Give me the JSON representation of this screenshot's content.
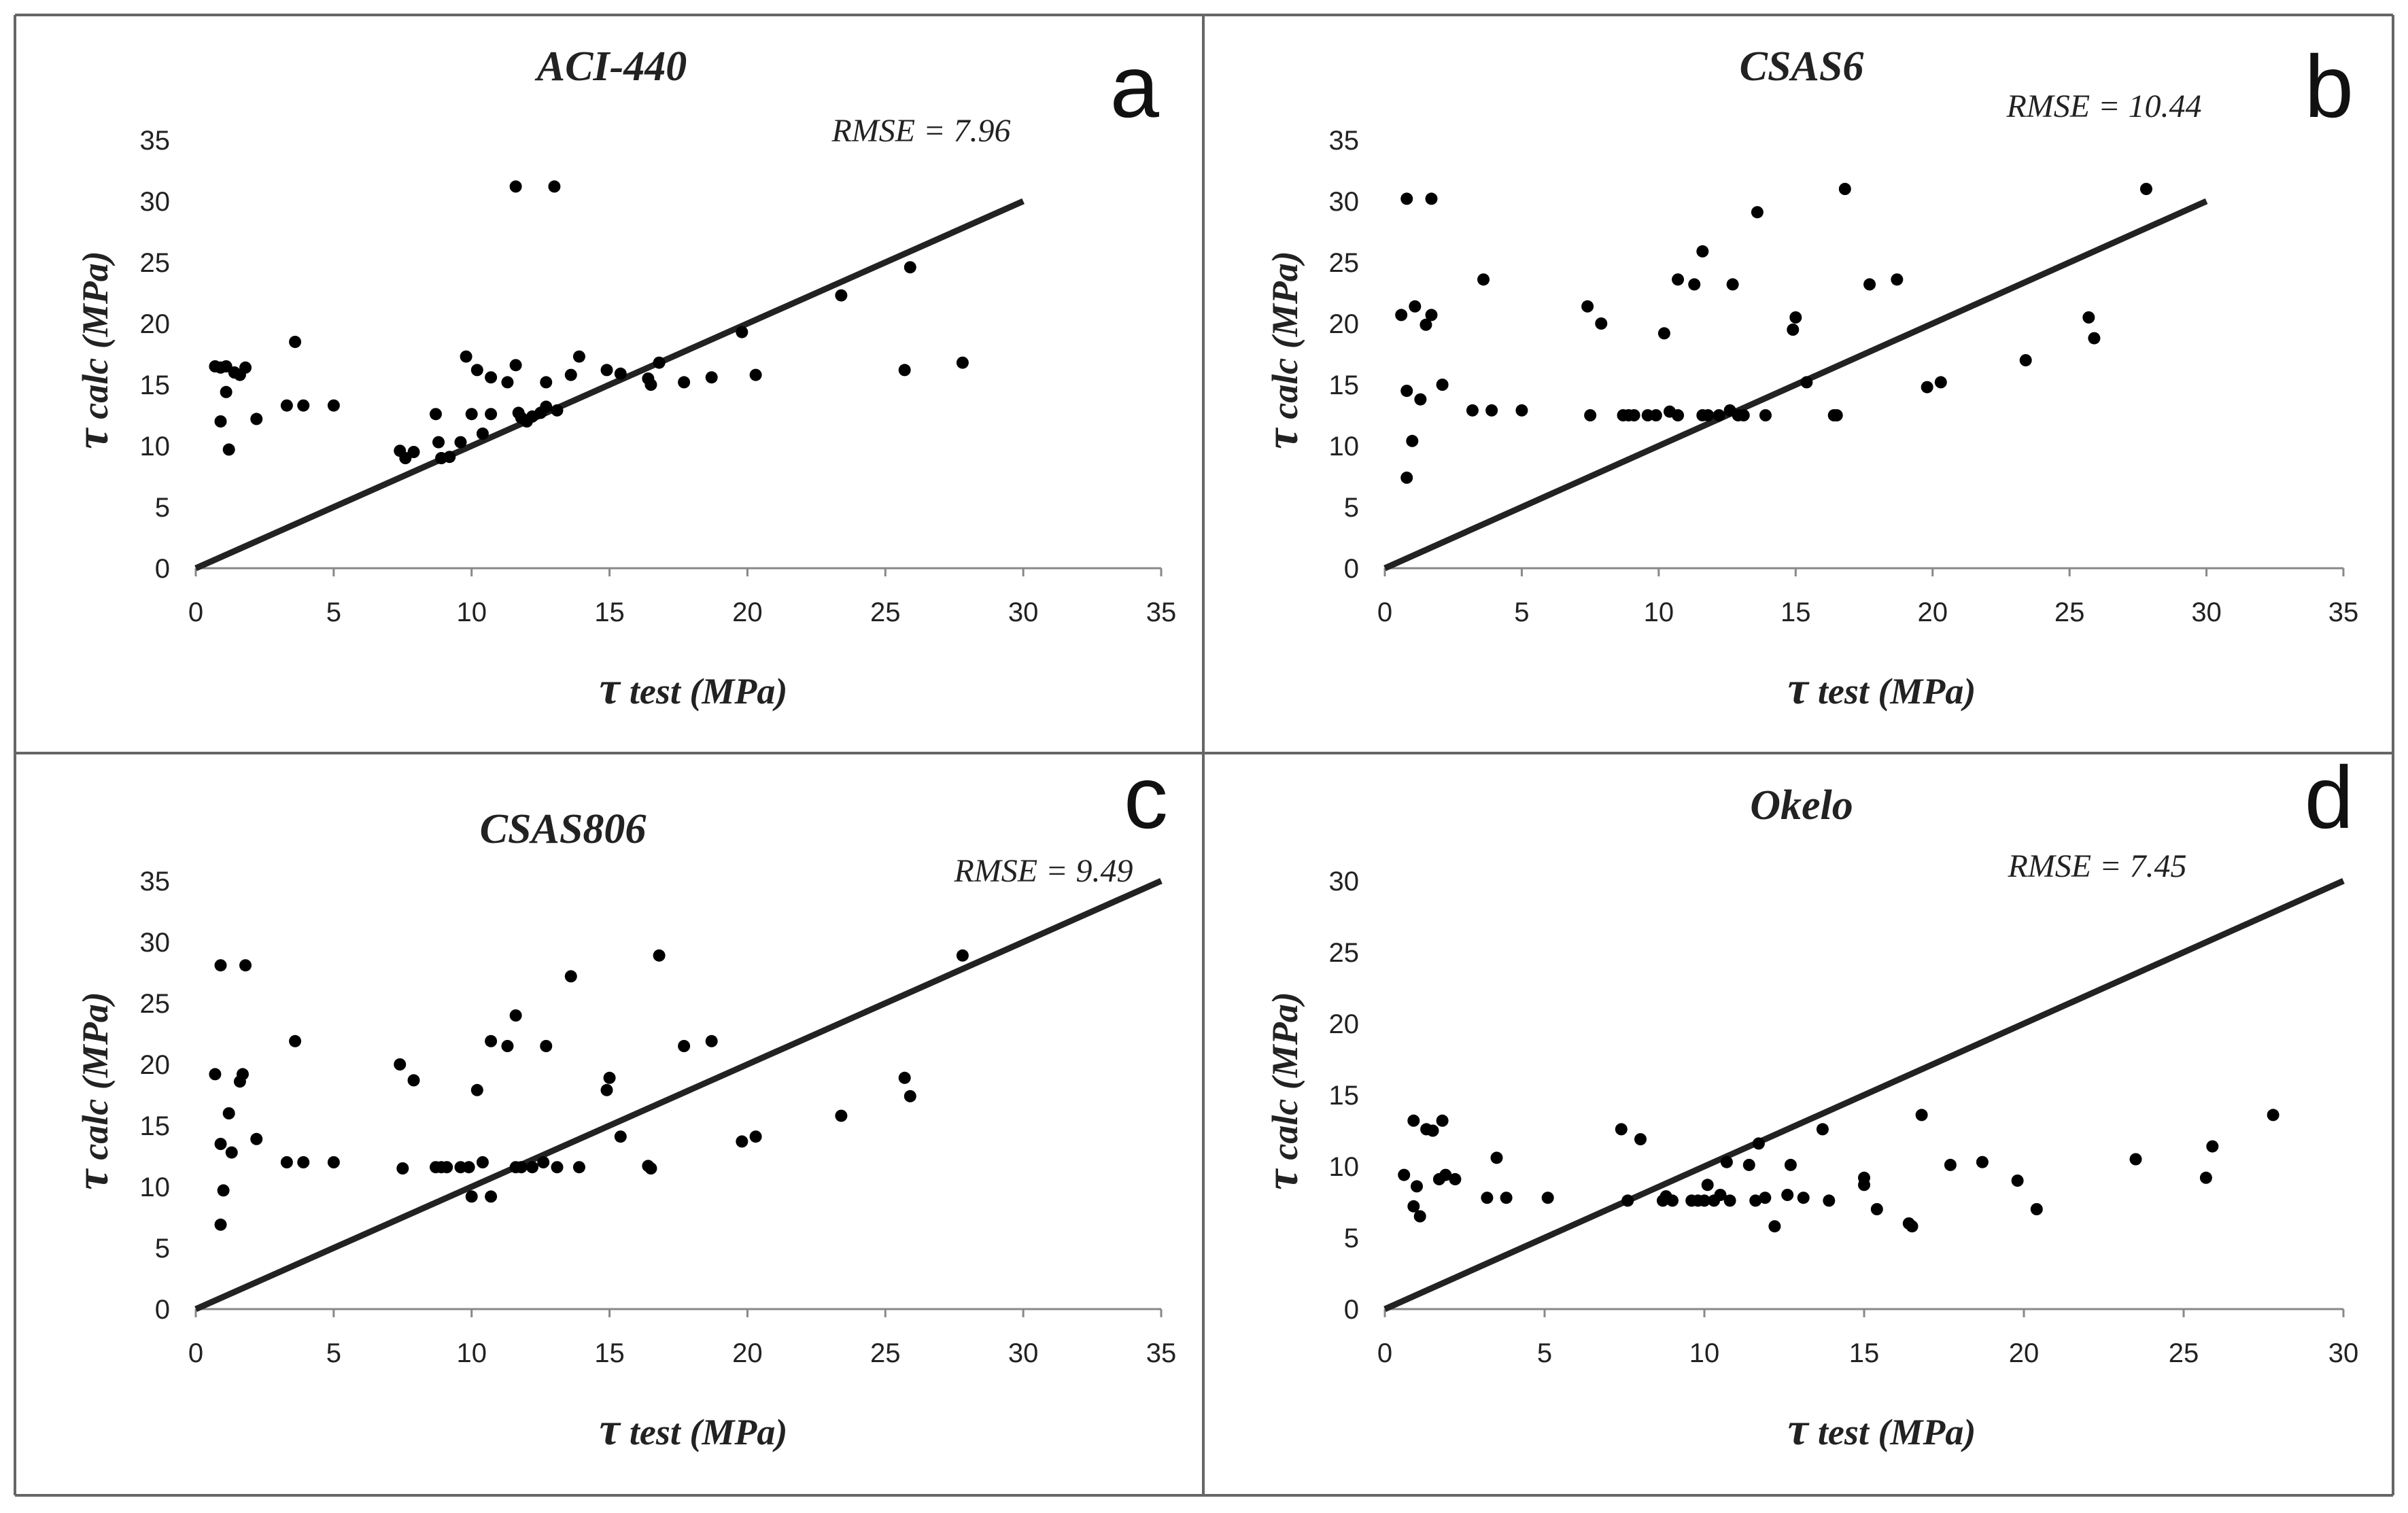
{
  "figure": {
    "colors": {
      "points": "#000000",
      "line": "#222222",
      "axis": "#888888",
      "frame": "#666666"
    }
  },
  "chart_data": [
    {
      "id": "a",
      "type": "scatter",
      "panel_label": "a",
      "title": "ACI-440",
      "xlabel_symbol": "τ",
      "xlabel": "test (MPa)",
      "ylabel_symbol": "τ",
      "ylabel": "calc (MPa)",
      "rmse_label": "RMSE = 7.96",
      "xlim": [
        0,
        35
      ],
      "ylim": [
        0,
        35
      ],
      "xticks": [
        0,
        5,
        10,
        15,
        20,
        25,
        30,
        35
      ],
      "yticks": [
        0,
        5,
        10,
        15,
        20,
        25,
        30,
        35
      ],
      "line": {
        "x": [
          0,
          30
        ],
        "y": [
          0,
          30
        ]
      },
      "points": [
        [
          0.7,
          16.5
        ],
        [
          0.9,
          16.4
        ],
        [
          1.1,
          16.5
        ],
        [
          1.4,
          16.0
        ],
        [
          1.6,
          15.8
        ],
        [
          1.8,
          16.4
        ],
        [
          0.9,
          12.0
        ],
        [
          1.1,
          14.4
        ],
        [
          1.2,
          9.7
        ],
        [
          2.2,
          12.2
        ],
        [
          3.3,
          13.3
        ],
        [
          3.6,
          18.5
        ],
        [
          3.9,
          13.3
        ],
        [
          5.0,
          13.3
        ],
        [
          7.4,
          9.6
        ],
        [
          7.6,
          9.0
        ],
        [
          7.9,
          9.5
        ],
        [
          8.7,
          12.6
        ],
        [
          8.8,
          10.3
        ],
        [
          8.9,
          9.0
        ],
        [
          9.2,
          9.1
        ],
        [
          9.6,
          10.3
        ],
        [
          9.8,
          17.3
        ],
        [
          10.0,
          12.6
        ],
        [
          10.2,
          16.2
        ],
        [
          10.4,
          11.0
        ],
        [
          10.7,
          12.6
        ],
        [
          10.7,
          15.6
        ],
        [
          11.3,
          15.2
        ],
        [
          11.6,
          16.6
        ],
        [
          11.7,
          12.7
        ],
        [
          11.8,
          12.3
        ],
        [
          12.0,
          12.0
        ],
        [
          12.2,
          12.4
        ],
        [
          12.5,
          12.7
        ],
        [
          12.7,
          15.2
        ],
        [
          12.7,
          13.2
        ],
        [
          13.1,
          12.9
        ],
        [
          13.6,
          15.8
        ],
        [
          13.9,
          17.3
        ],
        [
          11.6,
          31.2
        ],
        [
          13.0,
          31.2
        ],
        [
          14.9,
          16.2
        ],
        [
          15.4,
          15.9
        ],
        [
          16.4,
          15.5
        ],
        [
          16.5,
          15.0
        ],
        [
          16.8,
          16.8
        ],
        [
          17.7,
          15.2
        ],
        [
          18.7,
          15.6
        ],
        [
          19.8,
          19.3
        ],
        [
          20.3,
          15.8
        ],
        [
          23.4,
          22.3
        ],
        [
          25.7,
          16.2
        ],
        [
          25.9,
          24.6
        ],
        [
          27.8,
          16.8
        ]
      ]
    },
    {
      "id": "b",
      "type": "scatter",
      "panel_label": "b",
      "title": "CSAS6",
      "xlabel_symbol": "τ",
      "xlabel": "test (MPa)",
      "ylabel_symbol": "τ",
      "ylabel": "calc (MPa)",
      "rmse_label": "RMSE = 10.44",
      "xlim": [
        0,
        35
      ],
      "ylim": [
        0,
        35
      ],
      "xticks": [
        0,
        5,
        10,
        15,
        20,
        25,
        30,
        35
      ],
      "yticks": [
        0,
        5,
        10,
        15,
        20,
        25,
        30,
        35
      ],
      "line": {
        "x": [
          0,
          30
        ],
        "y": [
          0,
          30
        ]
      },
      "points": [
        [
          0.8,
          30.2
        ],
        [
          1.7,
          30.2
        ],
        [
          0.6,
          20.7
        ],
        [
          1.1,
          21.4
        ],
        [
          1.5,
          19.9
        ],
        [
          1.7,
          20.7
        ],
        [
          0.8,
          14.5
        ],
        [
          1.3,
          13.8
        ],
        [
          2.1,
          15.0
        ],
        [
          1.0,
          10.4
        ],
        [
          0.8,
          7.4
        ],
        [
          3.2,
          12.9
        ],
        [
          3.6,
          23.6
        ],
        [
          3.9,
          12.9
        ],
        [
          5.0,
          12.9
        ],
        [
          7.4,
          21.4
        ],
        [
          7.5,
          12.5
        ],
        [
          7.9,
          20.0
        ],
        [
          8.7,
          12.5
        ],
        [
          8.9,
          12.5
        ],
        [
          9.1,
          12.5
        ],
        [
          9.6,
          12.5
        ],
        [
          9.9,
          12.5
        ],
        [
          10.2,
          19.2
        ],
        [
          10.4,
          12.8
        ],
        [
          10.7,
          23.6
        ],
        [
          10.7,
          12.5
        ],
        [
          11.3,
          23.2
        ],
        [
          11.6,
          25.9
        ],
        [
          11.6,
          12.5
        ],
        [
          11.8,
          12.5
        ],
        [
          12.2,
          12.5
        ],
        [
          12.6,
          12.9
        ],
        [
          12.7,
          23.2
        ],
        [
          12.9,
          12.5
        ],
        [
          13.1,
          12.5
        ],
        [
          13.6,
          29.1
        ],
        [
          13.9,
          12.5
        ],
        [
          14.9,
          19.5
        ],
        [
          15.0,
          20.5
        ],
        [
          15.4,
          15.2
        ],
        [
          16.4,
          12.5
        ],
        [
          16.5,
          12.5
        ],
        [
          16.8,
          31.0
        ],
        [
          17.7,
          23.2
        ],
        [
          18.7,
          23.6
        ],
        [
          19.8,
          14.8
        ],
        [
          20.3,
          15.2
        ],
        [
          23.4,
          17.0
        ],
        [
          25.7,
          20.5
        ],
        [
          25.9,
          18.8
        ],
        [
          27.8,
          31.0
        ]
      ]
    },
    {
      "id": "c",
      "type": "scatter",
      "panel_label": "c",
      "title": "CSAS806",
      "xlabel_symbol": "τ",
      "xlabel": "test (MPa)",
      "ylabel_symbol": "τ",
      "ylabel": "calc (MPa)",
      "rmse_label": "RMSE = 9.49",
      "xlim": [
        0,
        35
      ],
      "ylim": [
        0,
        35
      ],
      "xticks": [
        0,
        5,
        10,
        15,
        20,
        25,
        30,
        35
      ],
      "yticks": [
        0,
        5,
        10,
        15,
        20,
        25,
        30,
        35
      ],
      "line": {
        "x": [
          0,
          35
        ],
        "y": [
          0,
          35
        ]
      },
      "points": [
        [
          0.7,
          19.2
        ],
        [
          0.9,
          28.1
        ],
        [
          1.8,
          28.1
        ],
        [
          1.6,
          18.6
        ],
        [
          1.7,
          19.2
        ],
        [
          0.9,
          13.5
        ],
        [
          1.2,
          16.0
        ],
        [
          1.3,
          12.8
        ],
        [
          2.2,
          13.9
        ],
        [
          1.0,
          9.7
        ],
        [
          0.9,
          6.9
        ],
        [
          3.3,
          12.0
        ],
        [
          3.6,
          21.9
        ],
        [
          3.9,
          12.0
        ],
        [
          5.0,
          12.0
        ],
        [
          7.4,
          20.0
        ],
        [
          7.5,
          11.5
        ],
        [
          7.9,
          18.7
        ],
        [
          8.7,
          11.6
        ],
        [
          8.9,
          11.6
        ],
        [
          9.1,
          11.6
        ],
        [
          9.6,
          11.6
        ],
        [
          9.9,
          11.6
        ],
        [
          10.0,
          9.2
        ],
        [
          10.2,
          17.9
        ],
        [
          10.4,
          12.0
        ],
        [
          10.7,
          21.9
        ],
        [
          10.7,
          9.2
        ],
        [
          11.3,
          21.5
        ],
        [
          11.6,
          24.0
        ],
        [
          11.6,
          11.6
        ],
        [
          11.8,
          11.6
        ],
        [
          12.2,
          11.6
        ],
        [
          12.6,
          12.0
        ],
        [
          12.7,
          21.5
        ],
        [
          13.1,
          11.6
        ],
        [
          13.6,
          27.2
        ],
        [
          13.9,
          11.6
        ],
        [
          14.9,
          17.9
        ],
        [
          15.0,
          18.9
        ],
        [
          15.4,
          14.1
        ],
        [
          16.4,
          11.7
        ],
        [
          16.5,
          11.5
        ],
        [
          16.8,
          28.9
        ],
        [
          17.7,
          21.5
        ],
        [
          18.7,
          21.9
        ],
        [
          19.8,
          13.7
        ],
        [
          20.3,
          14.1
        ],
        [
          23.4,
          15.8
        ],
        [
          25.7,
          18.9
        ],
        [
          25.9,
          17.4
        ],
        [
          27.8,
          28.9
        ]
      ]
    },
    {
      "id": "d",
      "type": "scatter",
      "panel_label": "d",
      "title": "Okelo",
      "xlabel_symbol": "τ",
      "xlabel": "test (MPa)",
      "ylabel_symbol": "τ",
      "ylabel": "calc (MPa)",
      "rmse_label": "RMSE = 7.45",
      "xlim": [
        0,
        30
      ],
      "ylim": [
        0,
        30
      ],
      "xticks": [
        0,
        5,
        10,
        15,
        20,
        25,
        30
      ],
      "yticks": [
        0,
        5,
        10,
        15,
        20,
        25,
        30
      ],
      "line": {
        "x": [
          0,
          30
        ],
        "y": [
          0,
          30
        ]
      },
      "points": [
        [
          0.6,
          9.4
        ],
        [
          0.9,
          13.2
        ],
        [
          0.9,
          7.2
        ],
        [
          1.0,
          8.6
        ],
        [
          1.1,
          6.5
        ],
        [
          1.3,
          12.6
        ],
        [
          1.5,
          12.5
        ],
        [
          1.7,
          9.1
        ],
        [
          1.8,
          13.2
        ],
        [
          1.9,
          9.4
        ],
        [
          2.2,
          9.1
        ],
        [
          3.2,
          7.8
        ],
        [
          3.5,
          10.6
        ],
        [
          3.8,
          7.8
        ],
        [
          5.1,
          7.8
        ],
        [
          7.4,
          12.6
        ],
        [
          7.6,
          7.6
        ],
        [
          8.0,
          11.9
        ],
        [
          8.7,
          7.6
        ],
        [
          8.8,
          7.9
        ],
        [
          9.0,
          7.6
        ],
        [
          9.6,
          7.6
        ],
        [
          9.8,
          7.6
        ],
        [
          10.0,
          7.6
        ],
        [
          10.1,
          8.7
        ],
        [
          10.3,
          7.6
        ],
        [
          10.5,
          8.0
        ],
        [
          10.7,
          10.3
        ],
        [
          10.8,
          7.6
        ],
        [
          11.4,
          10.1
        ],
        [
          11.6,
          7.6
        ],
        [
          11.7,
          11.6
        ],
        [
          11.9,
          7.8
        ],
        [
          12.2,
          5.8
        ],
        [
          12.6,
          8.0
        ],
        [
          12.7,
          10.1
        ],
        [
          13.1,
          7.8
        ],
        [
          13.7,
          12.6
        ],
        [
          13.9,
          7.6
        ],
        [
          15.0,
          9.2
        ],
        [
          15.0,
          8.7
        ],
        [
          15.4,
          7.0
        ],
        [
          16.4,
          6.0
        ],
        [
          16.5,
          5.8
        ],
        [
          16.8,
          13.6
        ],
        [
          17.7,
          10.1
        ],
        [
          18.7,
          10.3
        ],
        [
          19.8,
          9.0
        ],
        [
          20.4,
          7.0
        ],
        [
          23.5,
          10.5
        ],
        [
          25.7,
          9.2
        ],
        [
          25.9,
          11.4
        ],
        [
          27.8,
          13.6
        ]
      ]
    }
  ]
}
